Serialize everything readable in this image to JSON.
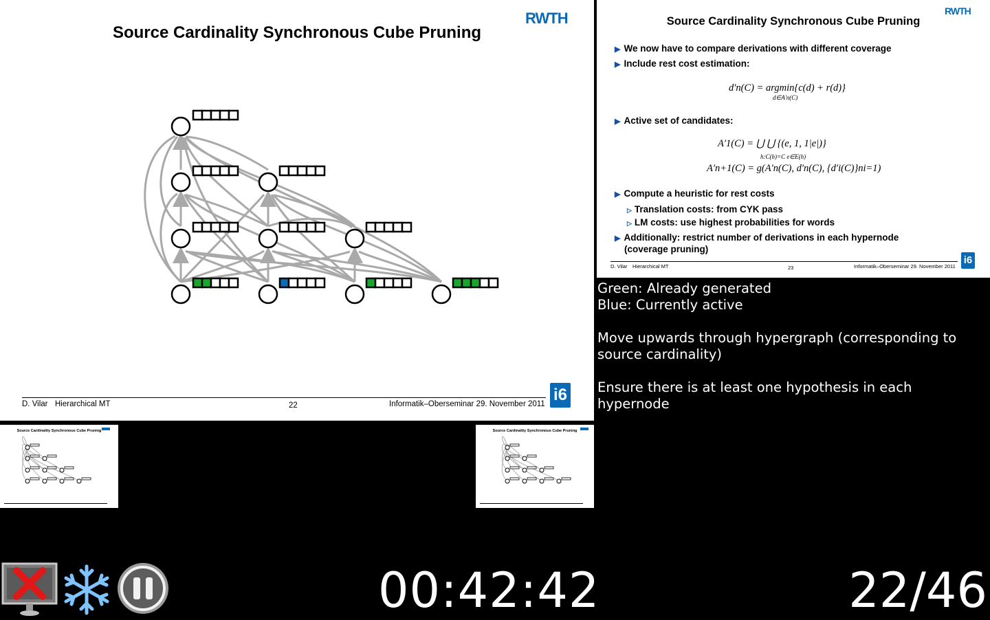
{
  "current_slide": {
    "title": "Source Cardinality Synchronous Cube Pruning",
    "logo": "RWTH",
    "footer_author": "D. Vilar",
    "footer_talk": "Hierarchical MT",
    "footer_page": "22",
    "footer_event": "Informatik–Oberseminar  29. November 2011",
    "badge": "i6"
  },
  "next_slide": {
    "title": "Source Cardinality Synchronous Cube Pruning",
    "logo": "RWTH",
    "bullets": [
      "We now have to compare derivations with different coverage",
      "Include rest cost estimation:",
      "Active set of candidates:",
      "Compute a heuristic for rest costs",
      "Additionally: restrict number of derivations in each hypernode",
      "(coverage pruning)"
    ],
    "subbullets": [
      "Translation costs: from CYK pass",
      "LM costs: use highest probabilities for words"
    ],
    "formula_rest_cost": "d′n(C) = argmin{c(d) + r(d)}",
    "formula_rest_cost_sub": "d∈A′n(C)",
    "formula_a1": "A′1(C) = ⋃  ⋃  {(e, 1, 1|e|)}",
    "formula_a1_sub": "h:C(h)=C   e∈E(h)",
    "formula_an": "A′n+1(C) = g(A′n(C), d′n(C), {d′i(C)}ni=1)",
    "footer_author": "D. Vilar",
    "footer_talk": "Hierarchical MT",
    "footer_page": "23",
    "footer_event": "Informatik–Oberseminar  29. November 2011",
    "badge": "i6"
  },
  "thumb_prev": {
    "title": "Source Cardinality Synchronous Cube Pruning"
  },
  "thumb_next": {
    "title": "Source Cardinality Synchronous Cube Pruning"
  },
  "notes": [
    "Green: Already generated\nBlue: Currently active",
    "Move upwards through hypergraph (corresponding to source cardinality)",
    "Ensure there is at least one hypothesis in each hypernode"
  ],
  "timer": "00:42:42",
  "slide_counter": "22/46",
  "controls": {
    "icons": [
      "exit-monitor-icon",
      "freeze-snowflake-icon",
      "pause-icon"
    ]
  },
  "colors": {
    "generated": "#1aa62a",
    "active": "#0f6ab2",
    "edge": "#a9a9a9",
    "brand": "#0a6ab6"
  }
}
